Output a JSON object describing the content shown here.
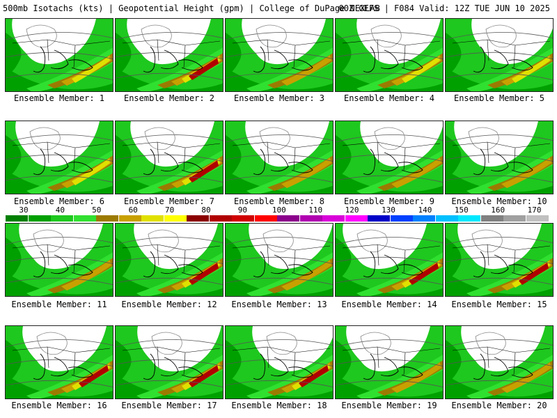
{
  "header": {
    "title_left": "500mb Isotachs (kts) | Geopotential Height (gpm) | College of DuPage NEXLAB",
    "title_right": "00Z GEFS | F084 Valid: 12Z TUE JUN 10 2025"
  },
  "member_prefix": "Ensemble Member:",
  "members": [
    {
      "label": "Ensemble Member: 1",
      "jet": "moderate"
    },
    {
      "label": "Ensemble Member: 2",
      "jet": "strong"
    },
    {
      "label": "Ensemble Member: 3",
      "jet": "weak"
    },
    {
      "label": "Ensemble Member: 4",
      "jet": "moderate"
    },
    {
      "label": "Ensemble Member: 5",
      "jet": "moderate"
    },
    {
      "label": "Ensemble Member: 6",
      "jet": "moderate"
    },
    {
      "label": "Ensemble Member: 7",
      "jet": "strong"
    },
    {
      "label": "Ensemble Member: 8",
      "jet": "weak"
    },
    {
      "label": "Ensemble Member: 9",
      "jet": "weak"
    },
    {
      "label": "Ensemble Member: 10",
      "jet": "weak"
    },
    {
      "label": "Ensemble Member: 11",
      "jet": "weak"
    },
    {
      "label": "Ensemble Member: 12",
      "jet": "strong"
    },
    {
      "label": "Ensemble Member: 13",
      "jet": "weak"
    },
    {
      "label": "Ensemble Member: 14",
      "jet": "strong"
    },
    {
      "label": "Ensemble Member: 15",
      "jet": "strong"
    },
    {
      "label": "Ensemble Member: 16",
      "jet": "strong"
    },
    {
      "label": "Ensemble Member: 17",
      "jet": "strong"
    },
    {
      "label": "Ensemble Member: 18",
      "jet": "strong"
    },
    {
      "label": "Ensemble Member: 19",
      "jet": "weak"
    },
    {
      "label": "Ensemble Member: 20",
      "jet": "weak"
    }
  ],
  "colorbar": {
    "ticks": [
      "30",
      "40",
      "50",
      "60",
      "70",
      "80",
      "90",
      "100",
      "110",
      "120",
      "130",
      "140",
      "150",
      "160",
      "170"
    ],
    "colors": [
      "#007f00",
      "#00a000",
      "#1ec81e",
      "#30e030",
      "#9c7a00",
      "#c8a000",
      "#e0e000",
      "#ffff00",
      "#8b0000",
      "#b00000",
      "#d00000",
      "#ff0000",
      "#8b008b",
      "#b000b0",
      "#d800d8",
      "#ff00ff",
      "#0000c8",
      "#0040ff",
      "#0080ff",
      "#00c0ff",
      "#00e8ff",
      "#808080",
      "#a0a0a0",
      "#c0c0c0"
    ]
  }
}
